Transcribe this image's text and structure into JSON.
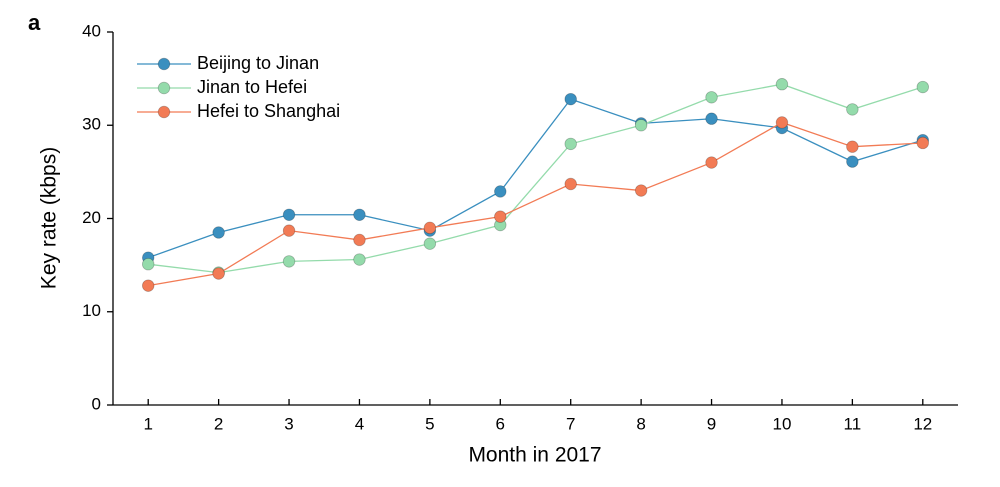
{
  "chart_data": {
    "type": "line",
    "panel_label": "a",
    "x_label": "Month in 2017",
    "y_label": "Key rate (kbps)",
    "x": [
      1,
      2,
      3,
      4,
      5,
      6,
      7,
      8,
      9,
      10,
      11,
      12
    ],
    "xlim": [
      0.5,
      12.5
    ],
    "xticks": [
      1,
      2,
      3,
      4,
      5,
      6,
      7,
      8,
      9,
      10,
      11,
      12
    ],
    "ylim": [
      0,
      40
    ],
    "yticks": [
      0,
      10,
      20,
      30,
      40
    ],
    "grid": false,
    "legend": "upper left",
    "series": [
      {
        "name": "Beijing to Jinan",
        "color": "#3a8fbf",
        "values": [
          15.8,
          18.5,
          20.4,
          20.4,
          18.7,
          22.9,
          32.8,
          30.2,
          30.7,
          29.7,
          26.1,
          28.4
        ]
      },
      {
        "name": "Jinan to Hefei",
        "color": "#94dbab",
        "values": [
          15.1,
          14.2,
          15.4,
          15.6,
          17.3,
          19.3,
          28.0,
          30.0,
          33.0,
          34.4,
          31.7,
          34.1
        ]
      },
      {
        "name": "Hefei to Shanghai",
        "color": "#f27b55",
        "values": [
          12.8,
          14.1,
          18.7,
          17.7,
          19.0,
          20.2,
          23.7,
          23.0,
          26.0,
          30.3,
          27.7,
          28.1
        ]
      }
    ]
  }
}
